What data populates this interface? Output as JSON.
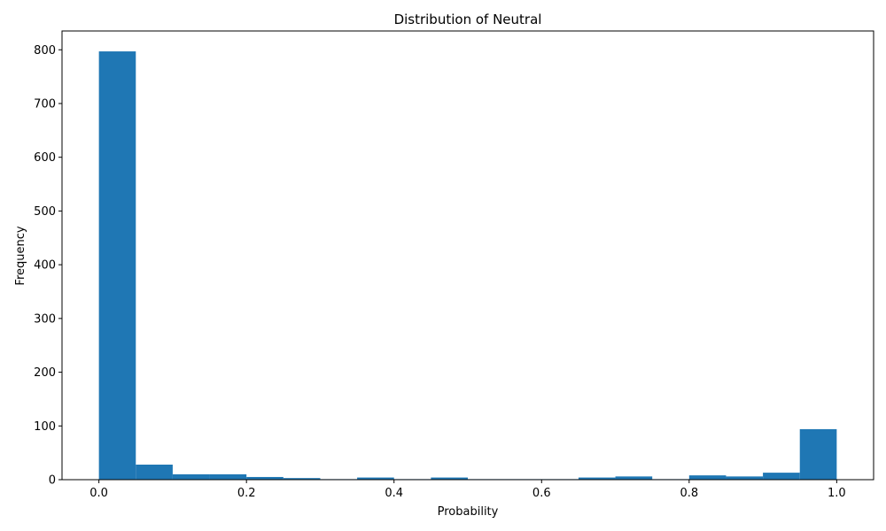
{
  "chart_data": {
    "type": "bar",
    "title": "Distribution of Neutral",
    "xlabel": "Probability",
    "ylabel": "Frequency",
    "xlim": [
      -0.05,
      1.05
    ],
    "ylim": [
      0,
      835
    ],
    "x_ticks": [
      0.0,
      0.2,
      0.4,
      0.6,
      0.8,
      1.0
    ],
    "x_tick_labels": [
      "0.0",
      "0.2",
      "0.4",
      "0.6",
      "0.8",
      "1.0"
    ],
    "y_ticks": [
      0,
      100,
      200,
      300,
      400,
      500,
      600,
      700,
      800
    ],
    "y_tick_labels": [
      "0",
      "100",
      "200",
      "300",
      "400",
      "500",
      "600",
      "700",
      "800"
    ],
    "bin_edges": [
      0.0,
      0.05,
      0.1,
      0.15,
      0.2,
      0.25,
      0.3,
      0.35,
      0.4,
      0.45,
      0.5,
      0.55,
      0.6,
      0.65,
      0.7,
      0.75,
      0.8,
      0.85,
      0.9,
      0.95,
      1.0
    ],
    "values": [
      797,
      28,
      10,
      10,
      5,
      3,
      1,
      4,
      1,
      4,
      1,
      1,
      1,
      4,
      6,
      1,
      8,
      6,
      13,
      94
    ],
    "bar_color": "#1f77b4",
    "grid": false
  }
}
